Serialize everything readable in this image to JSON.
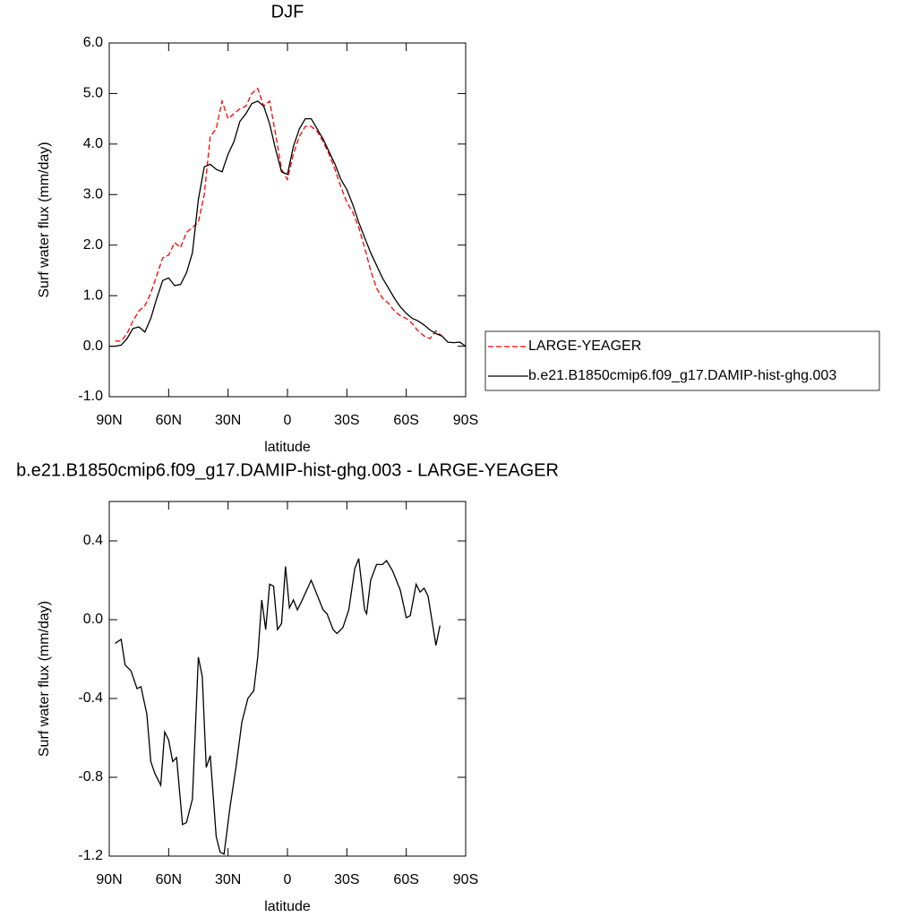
{
  "chart_data": [
    {
      "type": "line",
      "title": "DJF",
      "xlabel": "latitude",
      "ylabel": "Surf water flux (mm/day)",
      "xlim": [
        90,
        -90
      ],
      "ylim": [
        -1,
        6
      ],
      "xticks": [
        {
          "value": 90,
          "label": "90N"
        },
        {
          "value": 60,
          "label": "60N"
        },
        {
          "value": 30,
          "label": "30N"
        },
        0,
        {
          "value": -30,
          "label": "30S"
        },
        {
          "value": -60,
          "label": "60S"
        },
        {
          "value": -90,
          "label": "90S"
        }
      ],
      "yticks": [
        {
          "value": -1,
          "label": "-1.0"
        },
        {
          "value": 0,
          "label": "0.0"
        },
        {
          "value": 1,
          "label": "1.0"
        },
        {
          "value": 2,
          "label": "2.0"
        },
        {
          "value": 3,
          "label": "3.0"
        },
        {
          "value": 4,
          "label": "4.0"
        },
        {
          "value": 5,
          "label": "5.0"
        },
        {
          "value": 6,
          "label": "6.0"
        }
      ],
      "legend": "right",
      "series": [
        {
          "name": "LARGE-YEAGER",
          "color": "#ff0000",
          "linestyle": "dashed",
          "x": [
            87,
            84,
            81,
            78,
            75,
            72,
            69,
            66,
            63,
            60,
            57,
            54,
            51,
            48,
            45,
            42,
            39,
            36,
            33,
            30,
            27,
            24,
            21,
            18,
            15,
            12,
            9,
            6,
            3,
            0,
            -3,
            -6,
            -9,
            -12,
            -15,
            -18,
            -21,
            -24,
            -27,
            -30,
            -33,
            -36,
            -39,
            -42,
            -45,
            -48,
            -51,
            -54,
            -57,
            -60,
            -63,
            -66,
            -69,
            -72,
            -75,
            -78
          ],
          "values": [
            0.1,
            0.1,
            0.25,
            0.5,
            0.7,
            0.8,
            1.05,
            1.4,
            1.75,
            1.8,
            2.05,
            1.95,
            2.25,
            2.35,
            2.45,
            3.0,
            4.15,
            4.3,
            4.85,
            4.5,
            4.6,
            4.7,
            4.75,
            5.0,
            5.1,
            4.75,
            4.85,
            4.2,
            3.5,
            3.3,
            3.8,
            4.15,
            4.35,
            4.35,
            4.25,
            4.05,
            3.8,
            3.5,
            3.15,
            2.85,
            2.65,
            2.35,
            1.95,
            1.5,
            1.15,
            0.95,
            0.85,
            0.7,
            0.6,
            0.55,
            0.45,
            0.3,
            0.2,
            0.15,
            0.3,
            0.2
          ]
        },
        {
          "name": "b.e21.B1850cmip6.f09_g17.DAMIP-hist-ghg.003",
          "color": "#000000",
          "linestyle": "solid",
          "x": [
            90,
            87,
            84,
            81,
            78,
            75,
            72,
            69,
            66,
            63,
            60,
            57,
            54,
            51,
            48,
            45,
            42,
            39,
            36,
            33,
            30,
            27,
            24,
            21,
            18,
            15,
            12,
            9,
            6,
            3,
            0,
            -3,
            -6,
            -9,
            -12,
            -15,
            -18,
            -21,
            -24,
            -27,
            -30,
            -33,
            -36,
            -39,
            -42,
            -45,
            -48,
            -51,
            -54,
            -57,
            -60,
            -63,
            -66,
            -69,
            -72,
            -75,
            -78,
            -81,
            -84,
            -87,
            -90
          ],
          "values": [
            0.0,
            0.0,
            0.02,
            0.15,
            0.35,
            0.38,
            0.28,
            0.55,
            0.95,
            1.3,
            1.35,
            1.2,
            1.22,
            1.45,
            1.85,
            2.9,
            3.55,
            3.6,
            3.5,
            3.45,
            3.8,
            4.05,
            4.45,
            4.6,
            4.8,
            4.85,
            4.75,
            4.4,
            3.9,
            3.45,
            3.4,
            3.95,
            4.3,
            4.5,
            4.5,
            4.3,
            4.1,
            3.85,
            3.6,
            3.3,
            3.1,
            2.8,
            2.45,
            2.15,
            1.85,
            1.6,
            1.35,
            1.15,
            0.95,
            0.78,
            0.65,
            0.55,
            0.5,
            0.42,
            0.32,
            0.25,
            0.2,
            0.08,
            0.07,
            0.08,
            0.0
          ]
        }
      ]
    },
    {
      "type": "line",
      "title": "b.e21.B1850cmip6.f09_g17.DAMIP-hist-ghg.003 - LARGE-YEAGER",
      "xlabel": "latitude",
      "ylabel": "Surf water flux (mm/day)",
      "xlim": [
        90,
        -90
      ],
      "ylim": [
        -1.2,
        0.6
      ],
      "xticks": [
        {
          "value": 90,
          "label": "90N"
        },
        {
          "value": 60,
          "label": "60N"
        },
        {
          "value": 30,
          "label": "30N"
        },
        0,
        {
          "value": -30,
          "label": "30S"
        },
        {
          "value": -60,
          "label": "60S"
        },
        {
          "value": -90,
          "label": "90S"
        }
      ],
      "yticks": [
        -1.2,
        -0.8,
        -0.4,
        {
          "value": 0,
          "label": "0.0"
        },
        0.4
      ],
      "series": [
        {
          "color": "#000000",
          "linestyle": "solid",
          "x": [
            87,
            84,
            82,
            79,
            76,
            74,
            71,
            69,
            67,
            64,
            62,
            60,
            58,
            56,
            53,
            51,
            48,
            45,
            43,
            41,
            39,
            36,
            34,
            32,
            29,
            26,
            23,
            20,
            17,
            15,
            13,
            11,
            9,
            7,
            5,
            3,
            1,
            -1,
            -3,
            -5,
            -7,
            -12,
            -14,
            -18,
            -20,
            -23,
            -25,
            -28,
            -31,
            -34,
            -36,
            -39,
            -40,
            -42,
            -45,
            -48,
            -50,
            -53,
            -57,
            -60,
            -62,
            -65,
            -67,
            -69,
            -71,
            -75,
            -77
          ],
          "values": [
            -0.12,
            -0.1,
            -0.23,
            -0.26,
            -0.35,
            -0.34,
            -0.48,
            -0.72,
            -0.78,
            -0.84,
            -0.57,
            -0.61,
            -0.72,
            -0.7,
            -1.04,
            -1.03,
            -0.91,
            -0.19,
            -0.29,
            -0.75,
            -0.69,
            -1.1,
            -1.18,
            -1.19,
            -0.95,
            -0.75,
            -0.52,
            -0.4,
            -0.36,
            -0.19,
            0.1,
            -0.05,
            0.18,
            0.17,
            -0.05,
            -0.02,
            0.27,
            0.06,
            0.1,
            0.05,
            0.09,
            0.2,
            0.15,
            0.05,
            0.03,
            -0.05,
            -0.07,
            -0.04,
            0.05,
            0.26,
            0.31,
            0.05,
            0.03,
            0.2,
            0.28,
            0.28,
            0.3,
            0.25,
            0.15,
            0.01,
            0.02,
            0.18,
            0.14,
            0.16,
            0.12,
            -0.13,
            -0.03
          ]
        }
      ]
    }
  ]
}
